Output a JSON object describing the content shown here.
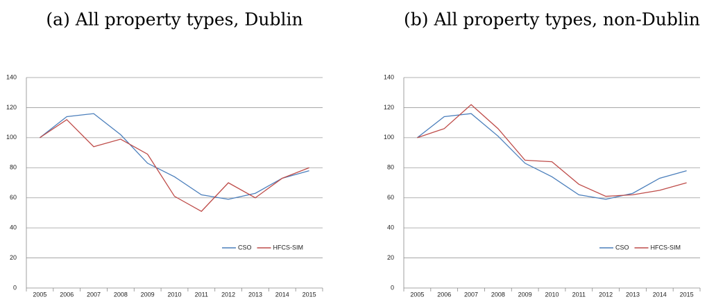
{
  "chart_data": [
    {
      "type": "line",
      "title": "(a) All property types, Dublin",
      "categories": [
        "2005",
        "2006",
        "2007",
        "2008",
        "2009",
        "2010",
        "2011",
        "2012",
        "2013",
        "2014",
        "2015"
      ],
      "series": [
        {
          "name": "CSO",
          "color": "#4a7ebb",
          "values": [
            100,
            114,
            116,
            102,
            83,
            74,
            62,
            59,
            63,
            73,
            78
          ]
        },
        {
          "name": "HFCS-SIM",
          "color": "#be4b48",
          "values": [
            100,
            112,
            94,
            99,
            89,
            61,
            51,
            70,
            60,
            73,
            80
          ]
        }
      ],
      "ylim": [
        0,
        140
      ],
      "yticks": [
        0,
        20,
        40,
        60,
        80,
        100,
        120,
        140
      ],
      "grid": true,
      "legend": "lower right"
    },
    {
      "type": "line",
      "title": "(b) All property types, non-Dublin",
      "categories": [
        "2005",
        "2006",
        "2007",
        "2008",
        "2009",
        "2010",
        "2011",
        "2012",
        "2013",
        "2014",
        "2015"
      ],
      "series": [
        {
          "name": "CSO",
          "color": "#4a7ebb",
          "values": [
            100,
            114,
            116,
            101,
            83,
            74,
            62,
            59,
            63,
            73,
            78
          ]
        },
        {
          "name": "HFCS-SIM",
          "color": "#be4b48",
          "values": [
            100,
            106,
            122,
            106,
            85,
            84,
            69,
            61,
            62,
            65,
            70
          ]
        }
      ],
      "ylim": [
        0,
        140
      ],
      "yticks": [
        0,
        20,
        40,
        60,
        80,
        100,
        120,
        140
      ],
      "grid": true,
      "legend": "lower right"
    }
  ]
}
